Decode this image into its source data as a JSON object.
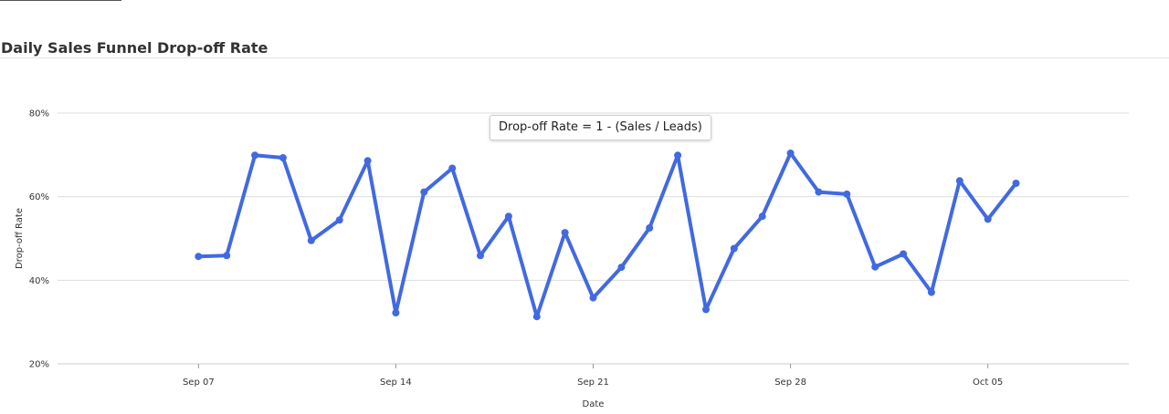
{
  "title": "Daily Sales Funnel Drop-off Rate",
  "tooltip": "Drop-off Rate = 1 - (Sales / Leads)",
  "colors": {
    "line": "#4169e1",
    "grid": "#dddddd",
    "axis": "#cccccc"
  },
  "chart_data": {
    "type": "line",
    "title": "Daily Sales Funnel Drop-off Rate",
    "xlabel": "Date",
    "ylabel": "Drop-off Rate",
    "x": [
      "2023-09-07",
      "2023-09-08",
      "2023-09-09",
      "2023-09-10",
      "2023-09-11",
      "2023-09-12",
      "2023-09-13",
      "2023-09-14",
      "2023-09-15",
      "2023-09-16",
      "2023-09-17",
      "2023-09-18",
      "2023-09-19",
      "2023-09-20",
      "2023-09-21",
      "2023-09-22",
      "2023-09-23",
      "2023-09-24",
      "2023-09-25",
      "2023-09-26",
      "2023-09-27",
      "2023-09-28",
      "2023-09-29",
      "2023-09-30",
      "2023-10-01",
      "2023-10-02",
      "2023-10-03",
      "2023-10-04",
      "2023-10-05",
      "2023-10-06"
    ],
    "series": [
      {
        "values": [
          45.7,
          45.9,
          69.9,
          69.3,
          49.5,
          54.4,
          68.6,
          32.2,
          61.1,
          66.8,
          45.9,
          55.3,
          31.3,
          51.4,
          35.8,
          43.1,
          52.5,
          69.9,
          33.0,
          47.6,
          55.3,
          70.4,
          61.1,
          60.6,
          43.2,
          46.3,
          37.1,
          63.8,
          54.6,
          63.2
        ]
      }
    ],
    "x_ticks": [
      "Sep 07",
      "Sep 14",
      "Sep 21",
      "Sep 28",
      "Oct 05"
    ],
    "x_tick_dates": [
      "2023-09-07",
      "2023-09-14",
      "2023-09-21",
      "2023-09-28",
      "2023-10-05"
    ],
    "y_ticks": [
      "20%",
      "40%",
      "60%",
      "80%"
    ],
    "y_tick_values": [
      20,
      40,
      60,
      80
    ],
    "ylim": [
      20,
      80
    ],
    "xlim": [
      "2023-09-02",
      "2023-10-10"
    ],
    "grid": "horizontal",
    "legend": "none"
  }
}
